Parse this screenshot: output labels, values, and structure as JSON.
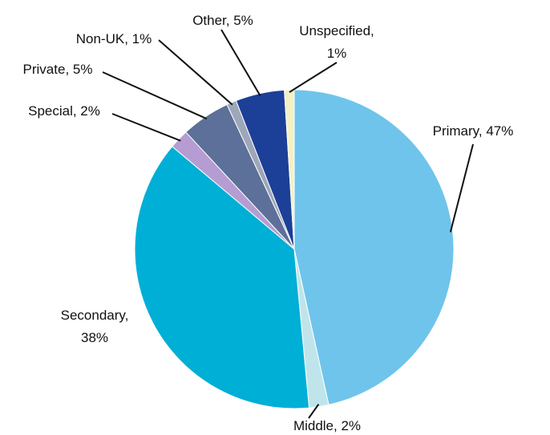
{
  "chart_data": {
    "type": "pie",
    "values": [
      47,
      2,
      38,
      2,
      5,
      1,
      5,
      1
    ],
    "value_labels": [
      "Primary, 47%",
      "Middle, 2%",
      "Secondary,\n38%",
      "Special, 2%",
      "Private, 5%",
      "Non-UK, 1%",
      "Other, 5%",
      "Unspecified,\n1%"
    ],
    "colors": [
      "#6fc4ec",
      "#bfe5ea",
      "#00afd6",
      "#b59cd2",
      "#5c7099",
      "#9ea7ba",
      "#1c3f98",
      "#f4f1c4"
    ]
  }
}
